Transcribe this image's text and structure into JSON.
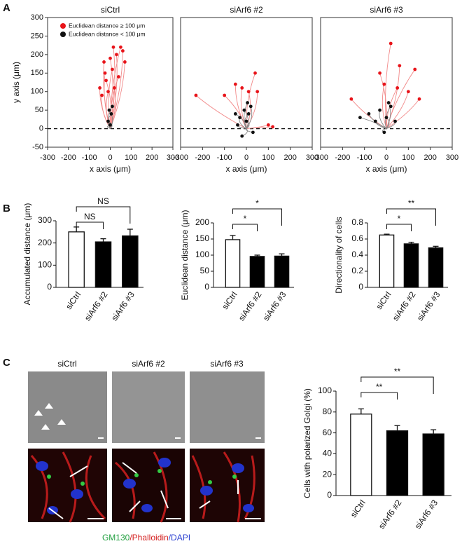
{
  "panels": [
    "A",
    "B",
    "C"
  ],
  "images": {
    "titles": [
      "siCtrl",
      "siArf6 #2",
      "siArf6 #3"
    ],
    "caption": [
      "GM130",
      "/Phalloidin",
      "/DAPI"
    ]
  },
  "chart_data": [
    {
      "type": "scatter",
      "title": "siCtrl",
      "xlabel": "x axis (μm)",
      "ylabel": "y axis (μm)",
      "xlim": [
        -300,
        300
      ],
      "xticks": [
        -300,
        -200,
        -100,
        0,
        100,
        200,
        300
      ],
      "ylim": [
        -50,
        300
      ],
      "yticks": [
        -50,
        0,
        50,
        100,
        150,
        200,
        250,
        300
      ],
      "hline": 0,
      "legend": "upper left",
      "series": [
        {
          "name": "Euclidean distance ≥ 100 μm",
          "color": "#e8141a",
          "track_color": "#f28a8a",
          "x": [
            -40,
            -20,
            10,
            30,
            50,
            60,
            -30,
            20,
            40,
            0,
            -10,
            70,
            -50,
            15,
            -25
          ],
          "values": [
            90,
            130,
            160,
            200,
            220,
            210,
            180,
            110,
            140,
            190,
            100,
            180,
            110,
            220,
            150
          ]
        },
        {
          "name": "Euclidean distance < 100 μm",
          "color": "#111111",
          "track_color": "#888888",
          "x": [
            5,
            -10,
            10,
            -5,
            0
          ],
          "values": [
            40,
            20,
            60,
            50,
            10
          ]
        }
      ]
    },
    {
      "type": "scatter",
      "title": "siArf6 #2",
      "xlabel": "x axis (μm)",
      "xlim": [
        -300,
        300
      ],
      "xticks": [
        -300,
        -200,
        -100,
        0,
        100,
        200,
        300
      ],
      "ylim": [
        -50,
        300
      ],
      "hline": 0,
      "series": [
        {
          "color": "#e8141a",
          "track_color": "#f28a8a",
          "x": [
            -230,
            -100,
            -50,
            10,
            40,
            50,
            -20,
            100,
            120
          ],
          "values": [
            90,
            90,
            120,
            100,
            150,
            100,
            110,
            10,
            5
          ]
        },
        {
          "color": "#111111",
          "track_color": "#888888",
          "x": [
            -30,
            -10,
            10,
            0,
            -40,
            20,
            30,
            -20,
            5,
            -50
          ],
          "values": [
            30,
            50,
            40,
            20,
            10,
            60,
            -10,
            -20,
            70,
            40
          ]
        }
      ]
    },
    {
      "type": "scatter",
      "title": "siArf6 #3",
      "xlabel": "x axis (μm)",
      "xlim": [
        -300,
        300
      ],
      "xticks": [
        -300,
        -200,
        -100,
        0,
        100,
        200,
        300
      ],
      "ylim": [
        -50,
        300
      ],
      "hline": 0,
      "series": [
        {
          "color": "#e8141a",
          "track_color": "#f28a8a",
          "x": [
            -160,
            -30,
            20,
            60,
            130,
            150,
            50,
            100,
            -10
          ],
          "values": [
            80,
            150,
            230,
            170,
            160,
            80,
            110,
            100,
            120
          ]
        },
        {
          "color": "#111111",
          "track_color": "#888888",
          "x": [
            -80,
            -120,
            -30,
            0,
            20,
            40,
            -10,
            10,
            -50
          ],
          "values": [
            40,
            30,
            50,
            30,
            60,
            20,
            -10,
            70,
            20
          ]
        }
      ]
    },
    {
      "type": "bar",
      "ylabel": "Accumulated distance (μm)",
      "categories": [
        "siCtrl",
        "siArf6 #2",
        "siArf6 #3"
      ],
      "values": [
        250,
        205,
        232
      ],
      "errors": [
        22,
        14,
        30
      ],
      "colors": [
        "#ffffff",
        "#000000",
        "#000000"
      ],
      "ylim": [
        0,
        300
      ],
      "yticks": [
        0,
        100,
        200,
        300
      ],
      "significance": [
        "NS",
        "NS"
      ]
    },
    {
      "type": "bar",
      "ylabel": "Euclidean distance (μm)",
      "categories": [
        "siCtrl",
        "siArf6 #2",
        "siArf6 #3"
      ],
      "values": [
        148,
        96,
        97
      ],
      "errors": [
        13,
        4,
        7
      ],
      "colors": [
        "#ffffff",
        "#000000",
        "#000000"
      ],
      "ylim": [
        0,
        200
      ],
      "yticks": [
        0,
        50,
        100,
        150,
        200
      ],
      "significance": [
        "*",
        "*"
      ]
    },
    {
      "type": "bar",
      "ylabel": "Directionality of cells",
      "categories": [
        "siCtrl",
        "siArf6 #2",
        "siArf6 #3"
      ],
      "values": [
        0.65,
        0.54,
        0.49
      ],
      "errors": [
        0.01,
        0.02,
        0.02
      ],
      "colors": [
        "#ffffff",
        "#000000",
        "#000000"
      ],
      "ylim": [
        0,
        0.8
      ],
      "yticks": [
        0,
        0.2,
        0.4,
        0.6,
        0.8
      ],
      "significance": [
        "*",
        "**"
      ]
    },
    {
      "type": "bar",
      "ylabel": "Cells with polarized Golgi (%)",
      "categories": [
        "siCtrl",
        "siArf6 #2",
        "siArf6 #3"
      ],
      "values": [
        78,
        62,
        59
      ],
      "errors": [
        5,
        5,
        4
      ],
      "colors": [
        "#ffffff",
        "#000000",
        "#000000"
      ],
      "ylim": [
        0,
        100
      ],
      "yticks": [
        0,
        20,
        40,
        60,
        80,
        100
      ],
      "significance": [
        "**",
        "**"
      ]
    }
  ]
}
